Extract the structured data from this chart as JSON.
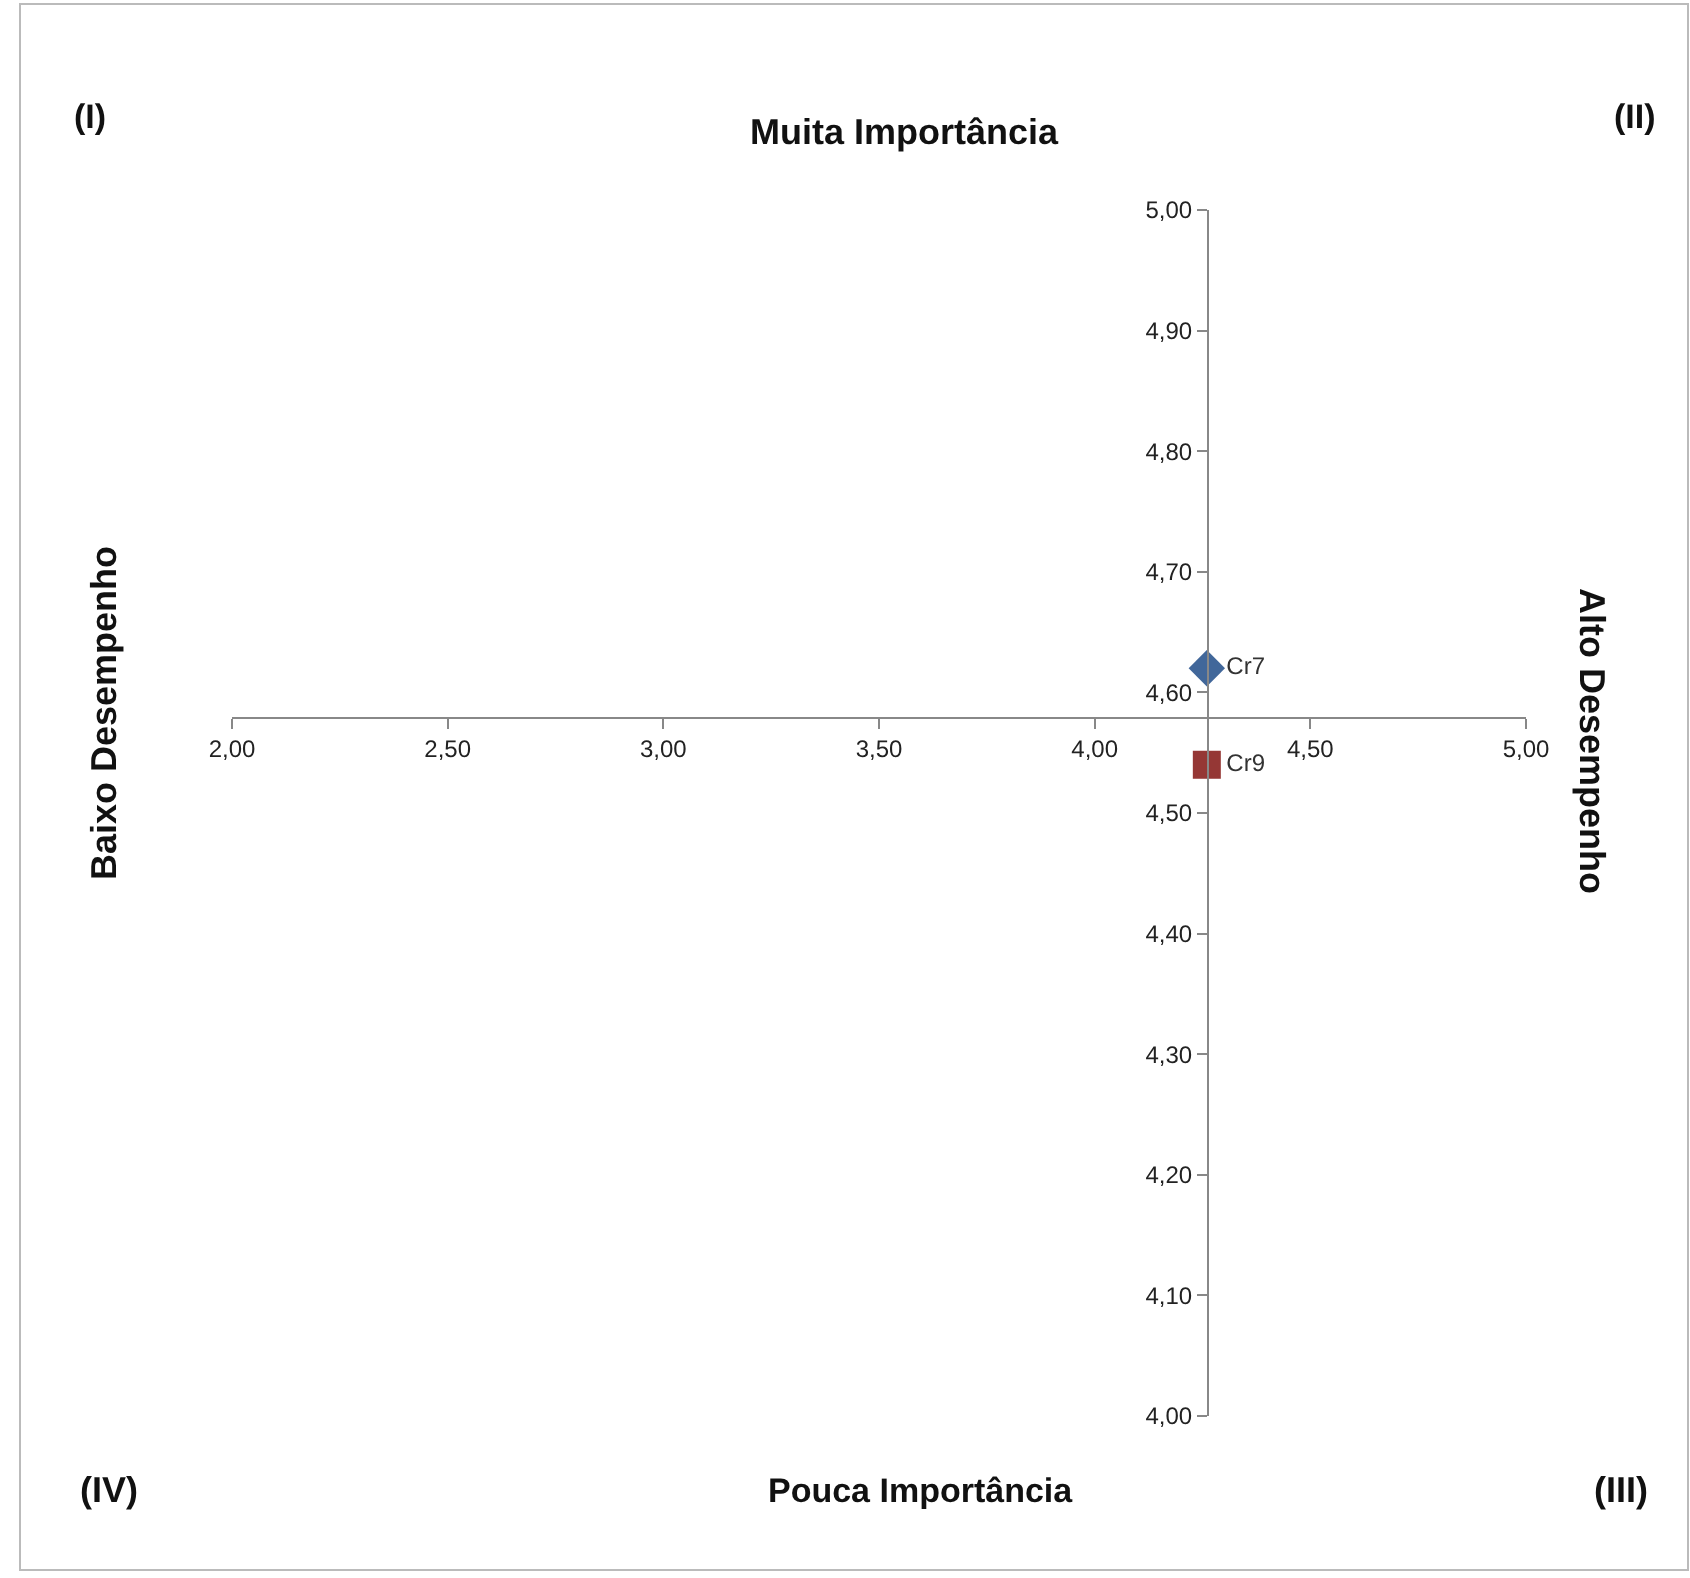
{
  "chart_data": {
    "type": "scatter",
    "annotations": [
      "(I)",
      "Muita Importância",
      "(II)",
      "Baixo Desempenho",
      "Alto Desempenho",
      "(IV)",
      "Pouca Importância",
      "(III)"
    ],
    "series": [
      {
        "name": "Cr7",
        "color": "#41679a",
        "marker": "diamond",
        "x": [
          4.26
        ],
        "values": [
          4.62
        ]
      },
      {
        "name": "Cr9",
        "color": "#953735",
        "marker": "square",
        "x": [
          4.26
        ],
        "values": [
          4.54
        ]
      }
    ],
    "xlim": [
      2,
      5
    ],
    "xticks": [
      {
        "value": 2,
        "label": "2,00"
      },
      {
        "value": 2.5,
        "label": "2,50"
      },
      {
        "value": 3,
        "label": "3,00"
      },
      {
        "value": 3.5,
        "label": "3,50"
      },
      {
        "value": 4,
        "label": "4,00"
      },
      {
        "value": 4.5,
        "label": "4,50"
      },
      {
        "value": 5,
        "label": "5,00"
      }
    ],
    "ylim": [
      4,
      5
    ],
    "yticks": [
      {
        "value": 4,
        "label": "4,00"
      },
      {
        "value": 4.1,
        "label": "4,10"
      },
      {
        "value": 4.2,
        "label": "4,20"
      },
      {
        "value": 4.3,
        "label": "4,30"
      },
      {
        "value": 4.4,
        "label": "4,40"
      },
      {
        "value": 4.5,
        "label": "4,50"
      },
      {
        "value": 4.6,
        "label": "4,60"
      },
      {
        "value": 4.7,
        "label": "4,70"
      },
      {
        "value": 4.8,
        "label": "4,80"
      },
      {
        "value": 4.9,
        "label": "4,90"
      },
      {
        "value": 5,
        "label": "5,00"
      }
    ],
    "grid": false,
    "legend": false
  }
}
